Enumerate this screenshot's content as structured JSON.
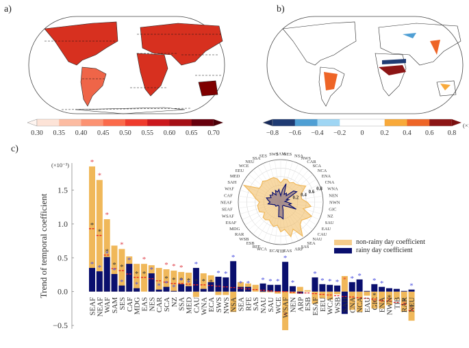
{
  "panels": {
    "a": {
      "label": "a)"
    },
    "b": {
      "label": "b)"
    },
    "c": {
      "label": "c)"
    }
  },
  "colorbar_a": {
    "ticks": [
      "0.30",
      "0.35",
      "0.40",
      "0.45",
      "0.50",
      "0.55",
      "0.60",
      "0.65",
      "0.70"
    ],
    "colors": [
      "#fde3d7",
      "#fcbba1",
      "#fc9272",
      "#fb6a4a",
      "#ef3b2c",
      "#cb181d",
      "#a50f15",
      "#67000d"
    ],
    "under_color": "#fff5f0",
    "over_color": "#4a0008"
  },
  "colorbar_b": {
    "ticks": [
      "−0.8",
      "−0.6",
      "−0.4",
      "−0.2",
      "0",
      "0.2",
      "0.4",
      "0.6",
      "0.8"
    ],
    "colors": [
      "#1f3b73",
      "#4f9fd4",
      "#9fd6f4",
      "#ffffff",
      "#ffffff",
      "#f8a93a",
      "#ee6527",
      "#8c1515"
    ],
    "under_color": "#16295a",
    "over_color": "#7a1010",
    "unit": "(×10⁻³)"
  },
  "chart_data": {
    "type": "bar",
    "title": "",
    "ylabel": "Trend of  temporal coefficient",
    "yunit": "(×10⁻³)",
    "ylim": [
      -0.55,
      1.9
    ],
    "yticks": [
      "−0.5",
      "0.0",
      "0.5",
      "1.0",
      "1.5"
    ],
    "ytick_values": [
      -0.5,
      0.0,
      0.5,
      1.0,
      1.5
    ],
    "categories": [
      "SEAF",
      "NEAF",
      "WAF",
      "SAM",
      "SES",
      "CAF",
      "MDG",
      "EAS",
      "NES",
      "CAR",
      "SCA",
      "NZ",
      "SSA",
      "MED",
      "CAU",
      "WNA",
      "ECA",
      "SWS",
      "NWS",
      "NSA",
      "SEA",
      "RFE",
      "SAS",
      "NAU",
      "SAU",
      "WCE",
      "WSAF",
      "NEN",
      "ARP",
      "ESB",
      "ESAF",
      "EEU",
      "WCA",
      "WSB",
      "SAH",
      "CNA",
      "NCA",
      "EAU",
      "GIC",
      "ENA",
      "NWN",
      "TIB",
      "RAR",
      "NEU"
    ],
    "series": [
      {
        "name": "non-rainy day coefficient",
        "color": "#f0b85a",
        "values": [
          1.85,
          1.65,
          1.07,
          0.68,
          0.63,
          0.52,
          0.41,
          0.41,
          0.39,
          0.35,
          0.33,
          0.31,
          0.29,
          0.28,
          -0.08,
          0.27,
          0.24,
          -0.05,
          -0.05,
          -0.3,
          0.14,
          0.12,
          0.1,
          -0.01,
          -0.01,
          -0.03,
          -0.57,
          -0.03,
          0.07,
          0.02,
          -0.18,
          -0.1,
          -0.12,
          -0.04,
          0.23,
          -0.27,
          -0.3,
          -0.06,
          -0.25,
          -0.25,
          -0.2,
          -0.12,
          -0.3,
          -0.43
        ]
      },
      {
        "name": "rainy day coefficient",
        "color": "#0a0f6e",
        "values": [
          0.35,
          0.3,
          0.51,
          0.26,
          0.09,
          0.41,
          0.05,
          0.0,
          0.27,
          0.03,
          0.07,
          0.01,
          0.11,
          0.08,
          0.35,
          0.04,
          0.14,
          0.22,
          0.21,
          0.45,
          0.07,
          0.07,
          0.0,
          0.12,
          0.1,
          0.1,
          0.44,
          0.08,
          -0.03,
          0.0,
          0.21,
          0.11,
          0.1,
          0.09,
          -0.33,
          0.14,
          0.18,
          0.01,
          0.11,
          0.07,
          0.05,
          0.04,
          0.01,
          0.03
        ]
      }
    ],
    "mean_line": [
      0.93,
      0.83,
      0.54,
      0.34,
      0.31,
      0.26,
      0.21,
      0.21,
      0.19,
      0.16,
      0.14,
      0.12,
      0.12,
      0.11,
      0.1,
      0.1,
      0.09,
      0.08,
      0.07,
      0.06,
      0.05,
      0.04,
      0.03,
      0.02,
      0.01,
      0.0,
      0.0,
      -0.01,
      -0.02,
      -0.02,
      -0.03,
      -0.04,
      -0.05,
      -0.06,
      -0.07,
      -0.08,
      -0.09,
      -0.1,
      -0.11,
      -0.13,
      -0.14,
      -0.16,
      -0.19,
      -0.28
    ],
    "significance": {
      "red_top": [
        "SEAF",
        "NEAF",
        "WAF",
        "SES",
        "EAS",
        "SCA",
        "NZ",
        "SSA"
      ],
      "red_in_bar": [
        "WSAF",
        "SAH",
        "GIC",
        "ENA",
        "NWN",
        "RAR",
        "NEU"
      ],
      "black": [
        "SEAF",
        "NEAF",
        "WAF",
        "SAM",
        "SES",
        "MDG",
        "EAS",
        "SCA",
        "NZ",
        "SSA",
        "MED",
        "CAU",
        "WNA",
        "ECA",
        "GIC",
        "NWN",
        "RAR",
        "NEU"
      ],
      "blue": [
        "SEAF",
        "NEAF",
        "WAF",
        "SAM",
        "SES",
        "CAF",
        "MDG",
        "NES",
        "CAR",
        "SCA",
        "NZ",
        "SSA",
        "MED",
        "CAU",
        "SWS",
        "NWS",
        "NSA",
        "SEA",
        "RFE",
        "NAU",
        "SAU",
        "WCE",
        "WSAF",
        "NEN",
        "ESAF",
        "EEU",
        "WCA",
        "WSB",
        "CNA",
        "NCA",
        "GIC",
        "ENA",
        "NEU"
      ]
    },
    "legend": {
      "position": "top-right",
      "entries": [
        "non-rainy day coefficient",
        "rainy day coefficient"
      ]
    },
    "radar": {
      "labels": [
        "SAM",
        "NES",
        "NSA",
        "NWS",
        "CAR",
        "SCA",
        "NCA",
        "ENA",
        "CNA",
        "WNA",
        "NEN",
        "NWN",
        "GIC",
        "NZ",
        "SAU",
        "EAU",
        "CAU",
        "NAU",
        "SEA",
        "SAS",
        "ARP",
        "EAS",
        "TIB",
        "ECA",
        "WCA",
        "RFE",
        "ESB",
        "WSB",
        "RAR",
        "MDG",
        "ESAF",
        "WSAF",
        "SEAF",
        "NEAF",
        "CAF",
        "WAF",
        "SAH",
        "MED",
        "EEU",
        "WCE",
        "NEU",
        "SSA",
        "SES",
        "SWS"
      ],
      "ring_labels": [
        "0.2",
        "0.4",
        "0.6",
        "0.8"
      ],
      "ring_values": [
        0.2,
        0.4,
        0.6,
        0.8
      ],
      "max": 1.0,
      "non_rainy": [
        0.45,
        0.55,
        0.55,
        0.5,
        0.55,
        0.55,
        0.6,
        0.7,
        0.55,
        0.5,
        0.5,
        0.62,
        0.72,
        0.55,
        0.8,
        0.72,
        0.65,
        0.7,
        0.95,
        0.7,
        0.85,
        0.65,
        0.7,
        0.55,
        0.6,
        0.55,
        0.5,
        0.55,
        0.55,
        0.45,
        0.55,
        0.55,
        0.55,
        0.5,
        0.6,
        0.7,
        0.95,
        0.6,
        0.6,
        0.65,
        0.6,
        0.6,
        0.6,
        0.55
      ],
      "rainy": [
        0.15,
        0.3,
        0.45,
        0.2,
        0.25,
        0.2,
        0.4,
        0.45,
        0.15,
        0.2,
        0.1,
        0.15,
        0.25,
        0.2,
        0.4,
        0.2,
        0.15,
        0.1,
        0.1,
        0.1,
        0.2,
        0.4,
        0.35,
        0.35,
        0.15,
        0.1,
        0.1,
        0.1,
        0.15,
        0.15,
        0.15,
        0.2,
        0.3,
        0.25,
        0.3,
        0.35,
        0.25,
        0.3,
        0.25,
        0.3,
        0.2,
        0.3,
        0.25,
        0.3
      ]
    }
  }
}
